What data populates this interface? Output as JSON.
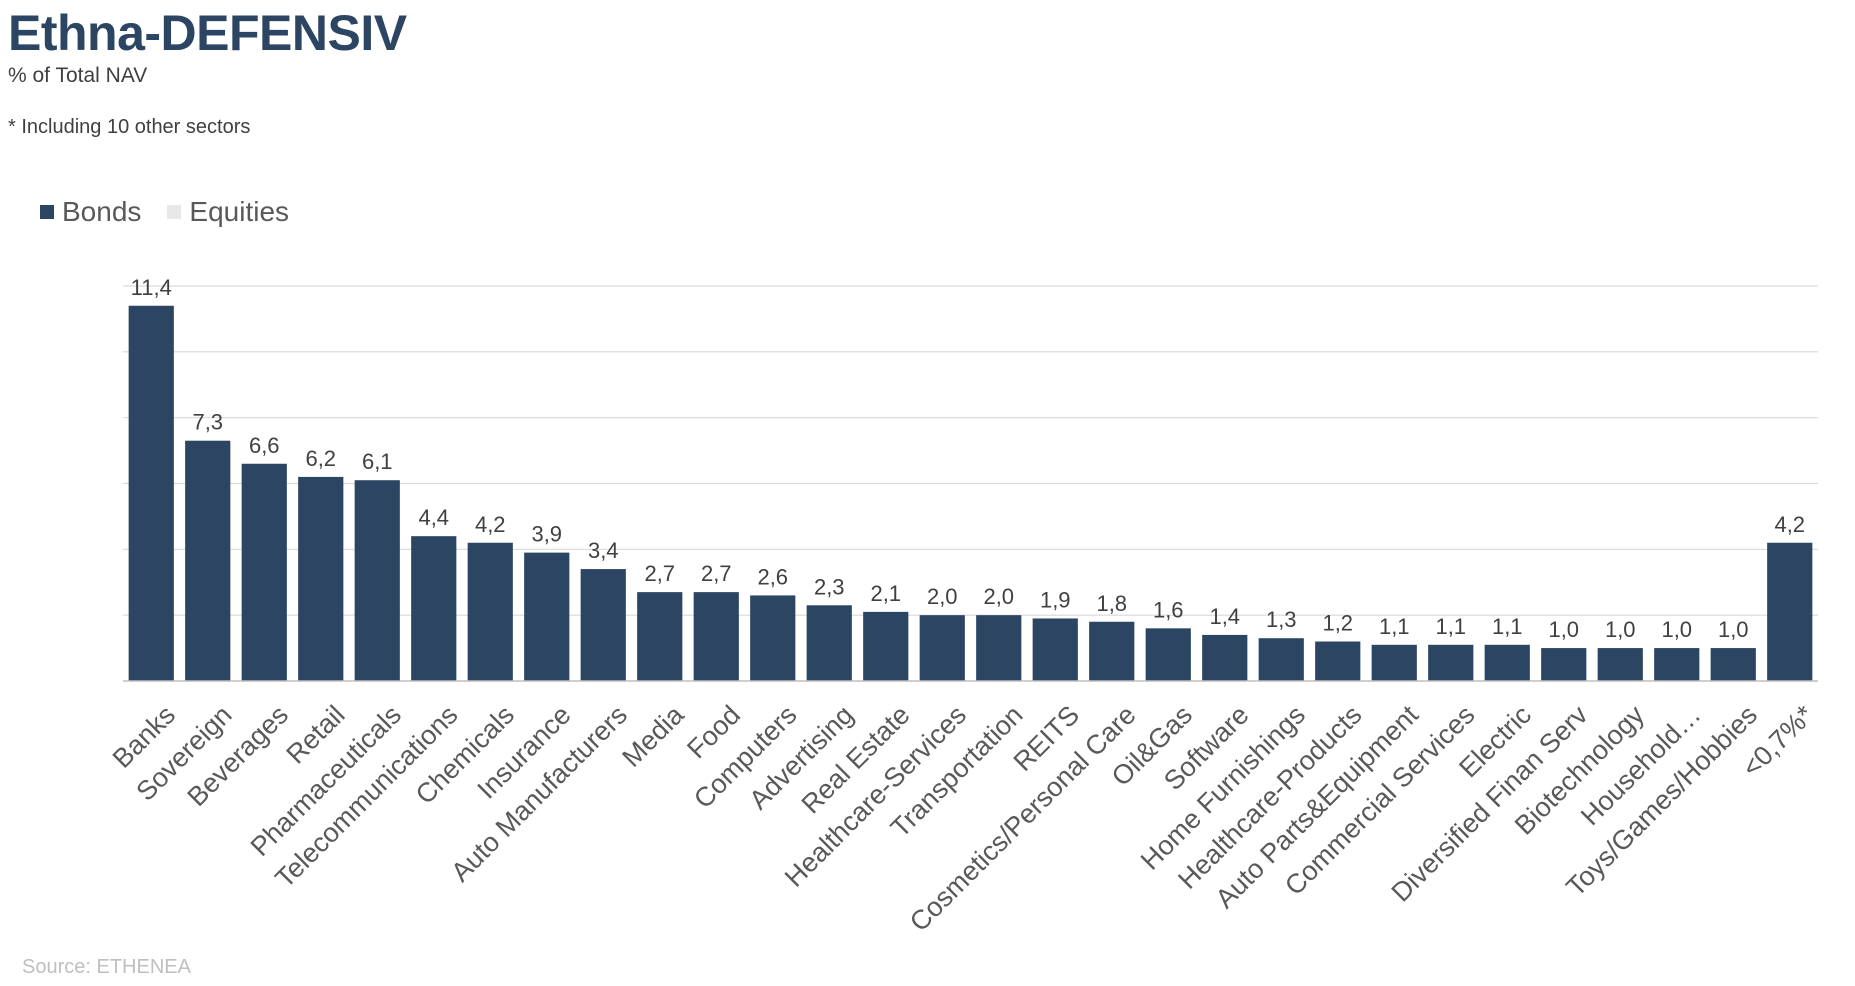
{
  "title": "Ethna-DEFENSIV",
  "subtitle": "% of Total NAV",
  "note": "* Including 10 other sectors",
  "source": "Source: ETHENEA",
  "legend": [
    {
      "name": "Bonds",
      "color": "#2c4563"
    },
    {
      "name": "Equities",
      "color": "#e8e8e8"
    }
  ],
  "chart_data": {
    "type": "bar",
    "categories": [
      "Banks",
      "Sovereign",
      "Beverages",
      "Retail",
      "Pharmaceuticals",
      "Telecommunications",
      "Chemicals",
      "Insurance",
      "Auto Manufacturers",
      "Media",
      "Food",
      "Computers",
      "Advertising",
      "Real Estate",
      "Healthcare-Services",
      "Transportation",
      "REITS",
      "Cosmetics/Personal Care",
      "Oil&Gas",
      "Software",
      "Home Furnishings",
      "Healthcare-Products",
      "Auto Parts&Equipment",
      "Commercial Services",
      "Electric",
      "Diversified Finan Serv",
      "Biotechnology",
      "Household…",
      "Toys/Games/Hobbies",
      "<0,7%*"
    ],
    "series": [
      {
        "name": "Bonds",
        "values": [
          11.4,
          7.3,
          6.6,
          6.2,
          6.1,
          4.4,
          4.2,
          3.9,
          3.4,
          2.7,
          2.7,
          2.6,
          2.3,
          2.1,
          2.0,
          2.0,
          1.9,
          1.8,
          1.6,
          1.4,
          1.3,
          1.2,
          1.1,
          1.1,
          1.1,
          1.0,
          1.0,
          1.0,
          1.0,
          4.2
        ]
      },
      {
        "name": "Equities",
        "values": [
          0,
          0,
          0,
          0,
          0,
          0,
          0,
          0,
          0,
          0,
          0,
          0,
          0,
          0,
          0,
          0,
          0,
          0,
          0,
          0,
          0,
          0,
          0,
          0,
          0,
          0,
          0,
          0,
          0,
          0
        ]
      }
    ],
    "data_labels": [
      "11,4",
      "7,3",
      "6,6",
      "6,2",
      "6,1",
      "4,4",
      "4,2",
      "3,9",
      "3,4",
      "2,7",
      "2,7",
      "2,6",
      "2,3",
      "2,1",
      "2,0",
      "2,0",
      "1,9",
      "1,8",
      "1,6",
      "1,4",
      "1,3",
      "1,2",
      "1,1",
      "1,1",
      "1,1",
      "1,0",
      "1,0",
      "1,0",
      "1,0",
      "4,2"
    ],
    "ylim": [
      0,
      12
    ],
    "y_gridlines": [
      2,
      4,
      6,
      8,
      10,
      12
    ],
    "grid": true,
    "legend_position": "top-left"
  }
}
